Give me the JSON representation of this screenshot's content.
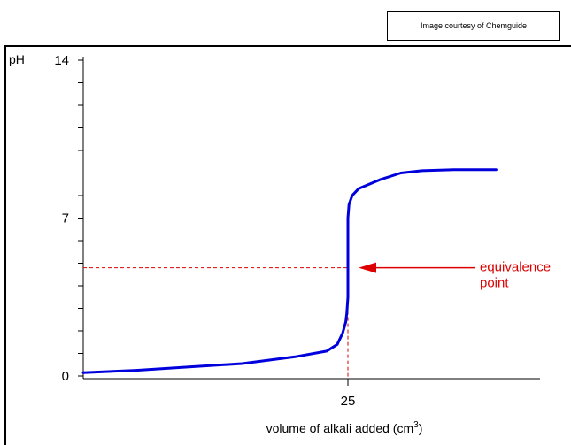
{
  "credit": "Image courtesy of Chemguide",
  "chart_data": {
    "type": "line",
    "xlabel": "volume of alkali added (cm",
    "xlabel_superscript": "3",
    "xlabel_close": ")",
    "ylabel": "pH",
    "x_ticks": [
      "25"
    ],
    "y_ticks": [
      "0",
      "7",
      "14"
    ],
    "xlim": [
      0,
      42
    ],
    "ylim": [
      0,
      14
    ],
    "series": [
      {
        "color": "#0000dd",
        "points": [
          [
            0,
            0.15
          ],
          [
            5,
            0.25
          ],
          [
            10,
            0.4
          ],
          [
            15,
            0.55
          ],
          [
            20,
            0.85
          ],
          [
            23,
            1.1
          ],
          [
            24,
            1.4
          ],
          [
            24.5,
            1.9
          ],
          [
            24.8,
            2.4
          ],
          [
            24.9,
            2.8
          ],
          [
            25,
            3.5
          ],
          [
            25,
            7.0
          ],
          [
            25.1,
            7.6
          ],
          [
            25.4,
            8.0
          ],
          [
            26,
            8.3
          ],
          [
            28,
            8.7
          ],
          [
            30,
            9.0
          ],
          [
            32,
            9.1
          ],
          [
            35,
            9.15
          ],
          [
            39,
            9.15
          ]
        ]
      }
    ],
    "annotation": {
      "lines": [
        "equivalence",
        "point"
      ],
      "x": 25,
      "y": 4.8,
      "color": "#dd0000"
    },
    "grid": false,
    "legend": "none"
  }
}
